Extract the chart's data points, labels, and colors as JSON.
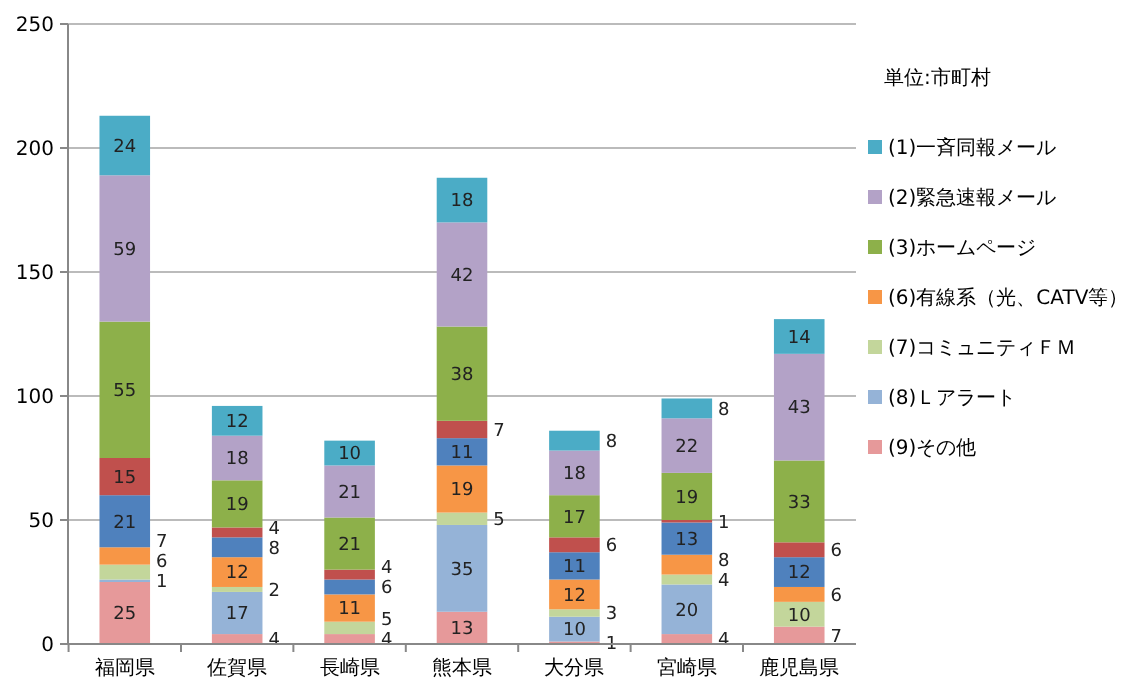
{
  "chart_data": {
    "type": "bar",
    "stacked": true,
    "categories": [
      "福岡県",
      "佐賀県",
      "長崎県",
      "熊本県",
      "大分県",
      "宮崎県",
      "鹿児島県"
    ],
    "series": [
      {
        "name": "(9)その他",
        "color": "#e6999a",
        "values": [
          25,
          4,
          4,
          13,
          1,
          4,
          7
        ]
      },
      {
        "name": "(8)Ｌアラート",
        "color": "#95b3d7",
        "values": [
          1,
          17,
          null,
          35,
          10,
          20,
          null
        ]
      },
      {
        "name": "(7)コミュニティＦＭ",
        "color": "#c3d69b",
        "values": [
          6,
          2,
          5,
          5,
          3,
          4,
          10
        ]
      },
      {
        "name": "(6)有線系（光、CATV等）",
        "color": "#f79646",
        "values": [
          7,
          12,
          11,
          19,
          12,
          8,
          6
        ]
      },
      {
        "color": "#4f81bd",
        "values": [
          21,
          8,
          6,
          11,
          11,
          13,
          12
        ]
      },
      {
        "color": "#c0504d",
        "values": [
          15,
          4,
          4,
          7,
          6,
          1,
          6
        ]
      },
      {
        "name": "(3)ホームページ",
        "color": "#8db04a",
        "values": [
          55,
          19,
          21,
          38,
          17,
          19,
          33
        ]
      },
      {
        "name": "(2)緊急速報メール",
        "color": "#b3a2c7",
        "values": [
          59,
          18,
          21,
          42,
          18,
          22,
          43
        ]
      },
      {
        "name": "(1)一斉同報メール",
        "color": "#4bacc6",
        "values": [
          24,
          12,
          10,
          18,
          8,
          8,
          14
        ]
      }
    ],
    "ylim": [
      0,
      250
    ],
    "yticks": [
      0,
      50,
      100,
      150,
      200,
      250
    ],
    "grid": "y",
    "legend": "right",
    "data_labels": true,
    "annotations": [
      "単位:市町村"
    ]
  }
}
